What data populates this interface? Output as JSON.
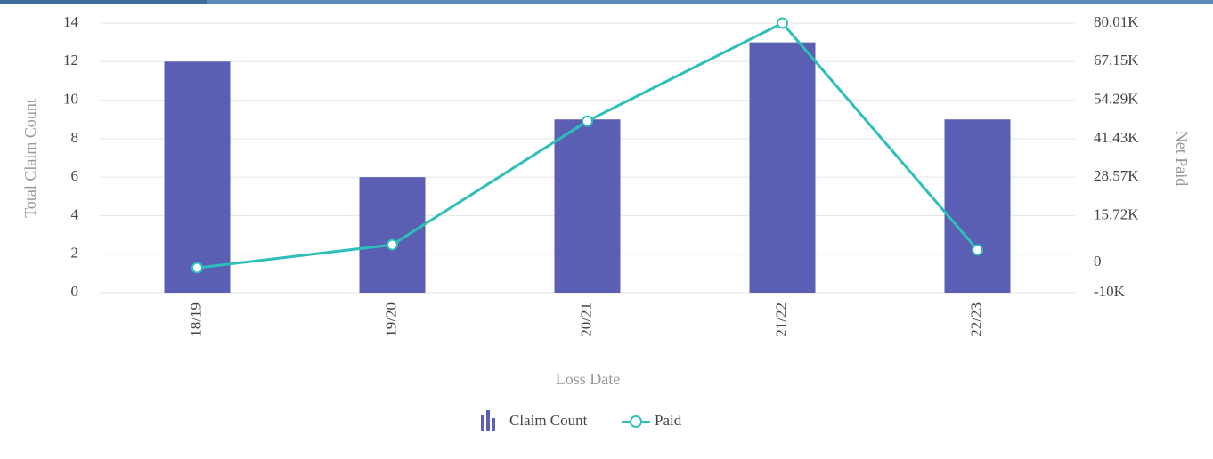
{
  "chart_data": {
    "type": "combo",
    "categories": [
      "18/19",
      "19/20",
      "20/21",
      "21/22",
      "22/23"
    ],
    "x_label": "Loss Date",
    "y_label": "Total Claim Count",
    "y2_label": "Net Paid",
    "series": [
      {
        "name": "Claim Count",
        "type": "bar",
        "color": "#5b5fb3",
        "values": [
          12,
          6,
          9,
          13,
          9
        ]
      },
      {
        "name": "Paid",
        "type": "line",
        "axis": "y2",
        "color": "#2ebfb8",
        "values": [
          -1700,
          6000,
          47300,
          80010,
          4300
        ]
      }
    ],
    "ylim": [
      0,
      14
    ],
    "yticks": [
      0,
      2,
      4,
      6,
      8,
      10,
      12,
      14
    ],
    "y2lim": [
      -10000,
      80010
    ],
    "y2ticks": [
      {
        "value": -10000,
        "label": "-10K"
      },
      {
        "value": 0,
        "label": "0"
      },
      {
        "value": 15720,
        "label": "15.72K"
      },
      {
        "value": 28570,
        "label": "28.57K"
      },
      {
        "value": 41430,
        "label": "41.43K"
      },
      {
        "value": 54290,
        "label": "54.29K"
      },
      {
        "value": 67150,
        "label": "67.15K"
      },
      {
        "value": 80010,
        "label": "80.01K"
      }
    ],
    "grid": true
  }
}
